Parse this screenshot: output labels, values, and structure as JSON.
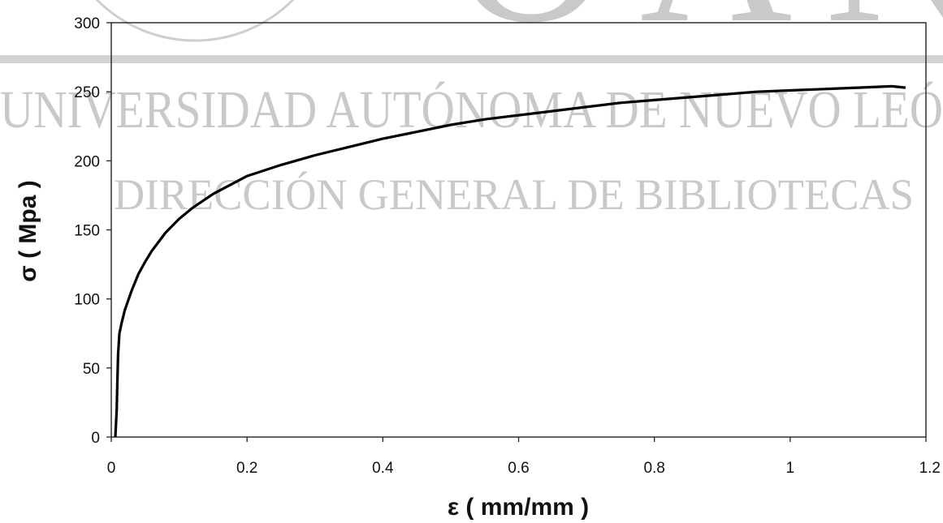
{
  "watermark": {
    "line1": "UNIVERSIDAD AUTÓNOMA DE NUEVO LEÓ",
    "line2": "DIRECCIÓN GENERAL DE BIBLIOTECAS",
    "big_letters": "OAN",
    "color": "#c9c9c9"
  },
  "chart_data": {
    "type": "line",
    "title": "",
    "xlabel": "ε ( mm/mm )",
    "ylabel": "σ ( Mpa )",
    "xlim": [
      0,
      1.2
    ],
    "ylim": [
      0,
      300
    ],
    "xticks": [
      0,
      0.2,
      0.4,
      0.6,
      0.8,
      1,
      1.2
    ],
    "yticks": [
      0,
      50,
      100,
      150,
      200,
      250,
      300
    ],
    "xtick_labels": [
      "0",
      "0.2",
      "0.4",
      "0.6",
      "0.8",
      "1",
      "1.2"
    ],
    "ytick_labels": [
      "0",
      "50",
      "100",
      "150",
      "200",
      "250",
      "300"
    ],
    "grid": false,
    "legend": "none",
    "line_color": "#000000",
    "series": [
      {
        "x": [
          0.006,
          0.008,
          0.009,
          0.01,
          0.012,
          0.015,
          0.02,
          0.03,
          0.04,
          0.05,
          0.06,
          0.08,
          0.1,
          0.12,
          0.15,
          0.2,
          0.25,
          0.3,
          0.35,
          0.4,
          0.45,
          0.5,
          0.55,
          0.6,
          0.65,
          0.7,
          0.75,
          0.8,
          0.85,
          0.9,
          0.95,
          1.0,
          1.05,
          1.1,
          1.15,
          1.17
        ],
        "y": [
          0,
          20,
          40,
          60,
          75,
          82,
          92,
          106,
          118,
          127,
          135,
          148,
          158,
          166,
          176,
          189,
          197,
          204,
          210,
          216,
          221,
          226,
          230,
          233,
          236,
          239,
          242,
          244,
          246,
          248,
          250,
          251,
          252,
          253,
          254,
          253
        ]
      }
    ]
  }
}
